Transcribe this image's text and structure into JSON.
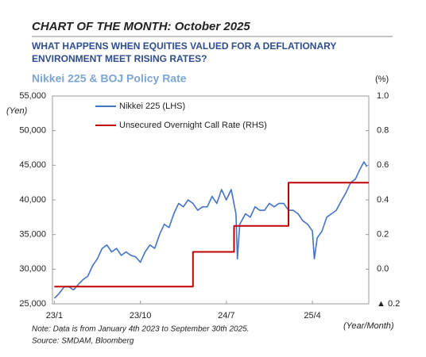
{
  "header": {
    "title": "CHART OF THE MONTH: October 2025",
    "subtitle_lines": [
      "WHAT HAPPENS WHEN EQUITIES VALUED FOR A DEFLATIONARY",
      "ENVIRONMENT MEET RISING RATES?"
    ]
  },
  "chart_data": {
    "type": "line",
    "title": "Nikkei 225 & BOJ Policy Rate",
    "y_label": "(Yen)",
    "y2_label": "(%)",
    "x_label": "(Year/Month)",
    "xlim": [
      -0.2,
      32.9
    ],
    "xticks": [
      {
        "value": 0,
        "label": "23/1"
      },
      {
        "value": 9,
        "label": "23/10"
      },
      {
        "value": 18,
        "label": "24/7"
      },
      {
        "value": 27,
        "label": "25/4"
      }
    ],
    "ylim": [
      25000,
      55000
    ],
    "yticks": [
      {
        "value": 25000,
        "label": "25,000"
      },
      {
        "value": 30000,
        "label": "30,000"
      },
      {
        "value": 35000,
        "label": "35,000"
      },
      {
        "value": 40000,
        "label": "40,000"
      },
      {
        "value": 45000,
        "label": "45,000"
      },
      {
        "value": 50000,
        "label": "50,000"
      },
      {
        "value": 55000,
        "label": "55,000"
      }
    ],
    "y2lim": [
      -0.2,
      1.0
    ],
    "y2ticks": [
      {
        "value": -0.2,
        "label": "▲ 0.2"
      },
      {
        "value": 0,
        "label": "0.0"
      },
      0.2,
      0.4,
      0.6,
      0.8,
      {
        "value": 1,
        "label": "1.0"
      }
    ],
    "grid": false,
    "legend": "top-left",
    "series": [
      {
        "name": "Nikkei 225 (LHS)",
        "color": "#4472c4",
        "x": [
          0,
          0.5,
          1,
          1.5,
          2,
          2.5,
          3,
          3.5,
          4,
          4.5,
          5,
          5.5,
          6,
          6.5,
          7,
          7.5,
          8,
          8.5,
          9,
          9.5,
          10,
          10.5,
          11,
          11.5,
          12,
          12.5,
          13,
          13.5,
          14,
          14.5,
          15,
          15.5,
          16,
          16.5,
          17,
          17.5,
          18,
          18.5,
          19,
          19.15,
          19.4,
          20,
          20.5,
          21,
          21.5,
          22,
          22.5,
          23,
          23.5,
          24,
          24.5,
          25,
          25.5,
          26,
          26.5,
          27,
          27.2,
          27.5,
          28,
          28.5,
          29,
          29.5,
          30,
          30.5,
          31,
          31.5,
          32,
          32.4,
          32.7
        ],
        "values": [
          25800,
          26500,
          27400,
          27500,
          27000,
          27800,
          28500,
          29000,
          30500,
          31500,
          33000,
          33500,
          32500,
          33000,
          32000,
          32500,
          32000,
          31800,
          31000,
          32500,
          33500,
          33000,
          35000,
          36500,
          36000,
          38000,
          39500,
          39000,
          40000,
          39500,
          38500,
          39000,
          39000,
          40500,
          39500,
          41500,
          40000,
          41500,
          38000,
          31500,
          36500,
          38000,
          37500,
          39000,
          38500,
          38500,
          39500,
          39000,
          39500,
          39500,
          38500,
          38500,
          38000,
          37000,
          36500,
          35500,
          31500,
          34500,
          35500,
          37500,
          38000,
          38500,
          39800,
          41000,
          42500,
          43000,
          44500,
          45500,
          44800
        ]
      },
      {
        "name": "Unsecured Overnight Call Rate (RHS)",
        "color": "#c00000",
        "axis": "y2",
        "x": [
          0,
          14.5,
          14.5,
          18.8,
          18.8,
          24.5,
          24.5,
          32.9
        ],
        "values": [
          -0.1,
          -0.1,
          0.1,
          0.1,
          0.25,
          0.25,
          0.5,
          0.5
        ]
      }
    ]
  },
  "notes": [
    "Note: Data is from January 4th 2023 to September 30th 2025.",
    "Source: SMDAM, Bloomberg"
  ]
}
